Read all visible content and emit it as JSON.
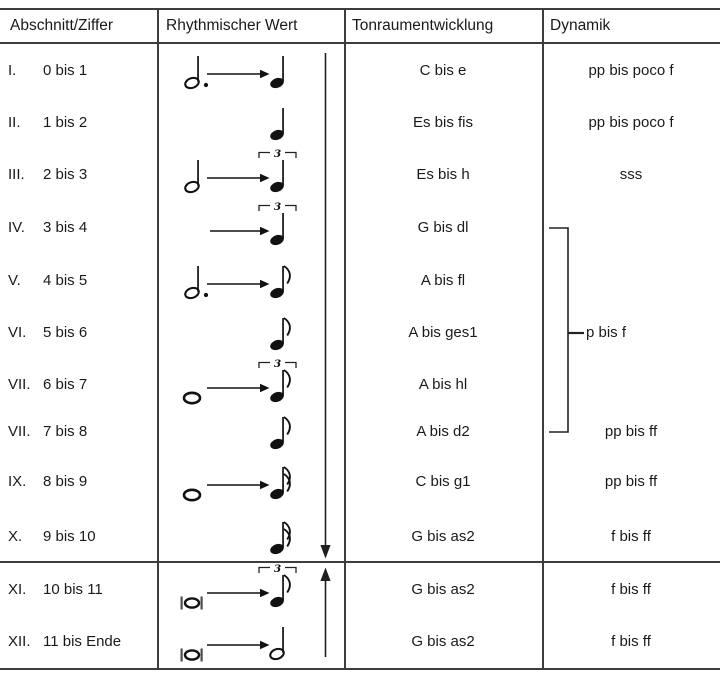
{
  "header": {
    "columns": [
      "Abschnitt/Ziffer",
      "Rhythmischer Wert",
      "Tonraumentwicklung",
      "Dynamik"
    ]
  },
  "rows": [
    {
      "numeral": "I.",
      "range": "0 bis 1",
      "rhythm": {
        "start": "dotted-half",
        "arrow": true,
        "end": "quarter",
        "triplet": false
      },
      "tonraum": "C bis e",
      "dynamik": "pp bis poco f"
    },
    {
      "numeral": "II.",
      "range": "1 bis 2",
      "rhythm": {
        "start": null,
        "arrow": false,
        "end": "quarter",
        "triplet": false
      },
      "tonraum": "Es bis fis",
      "dynamik": "pp bis poco f"
    },
    {
      "numeral": "III.",
      "range": "2 bis 3",
      "rhythm": {
        "start": "half",
        "arrow": true,
        "end": "quarter",
        "triplet": true
      },
      "tonraum": "Es bis h",
      "dynamik": "sss"
    },
    {
      "numeral": "IV.",
      "range": "3 bis 4",
      "rhythm": {
        "start": null,
        "arrow": true,
        "end": "quarter",
        "triplet": true
      },
      "tonraum": "G bis dl",
      "dynamik": ""
    },
    {
      "numeral": "V.",
      "range": "4 bis 5",
      "rhythm": {
        "start": "dotted-half",
        "arrow": true,
        "end": "eighth",
        "triplet": false
      },
      "tonraum": "A bis fl",
      "dynamik": ""
    },
    {
      "numeral": "VI.",
      "range": "5 bis 6",
      "rhythm": {
        "start": null,
        "arrow": false,
        "end": "eighth",
        "triplet": false
      },
      "tonraum": "A bis ges1",
      "dynamik": ""
    },
    {
      "numeral": "VII.",
      "range": "6 bis 7",
      "rhythm": {
        "start": "whole",
        "arrow": true,
        "end": "eighth",
        "triplet": true
      },
      "tonraum": "A bis hl",
      "dynamik": ""
    },
    {
      "numeral": "VII.",
      "range": "7 bis 8",
      "rhythm": {
        "start": null,
        "arrow": false,
        "end": "eighth",
        "triplet": false
      },
      "tonraum": "A bis d2",
      "dynamik": "pp bis ff"
    },
    {
      "numeral": "IX.",
      "range": "8 bis 9",
      "rhythm": {
        "start": "whole",
        "arrow": true,
        "end": "sixteenth",
        "triplet": false
      },
      "tonraum": "C bis g1",
      "dynamik": "pp bis ff"
    },
    {
      "numeral": "X.",
      "range": "9 bis 10",
      "rhythm": {
        "start": null,
        "arrow": false,
        "end": "sixteenth",
        "triplet": false
      },
      "tonraum": "G bis as2",
      "dynamik": "f bis ff"
    },
    {
      "numeral": "XI.",
      "range": "10 bis 11",
      "rhythm": {
        "start": "breve",
        "arrow": true,
        "end": "eighth",
        "triplet": true
      },
      "tonraum": "G bis as2",
      "dynamik": "f bis ff"
    },
    {
      "numeral": "XII.",
      "range": "11 bis Ende",
      "rhythm": {
        "start": "breve",
        "arrow": true,
        "end": "half",
        "triplet": false
      },
      "tonraum": "G bis as2",
      "dynamik": "f bis ff"
    }
  ],
  "rhythm_symbols": {
    "triplet_label": "3"
  },
  "dynamics_bracket": {
    "label": "p bis f"
  },
  "icons": {
    "descending_arrow": "down-arrow-icon",
    "ascending_arrow": "up-arrow-icon",
    "right_arrow": "right-arrow-icon"
  },
  "colors": {
    "text": "#1a1a1a",
    "line": "#3d3d3d"
  }
}
